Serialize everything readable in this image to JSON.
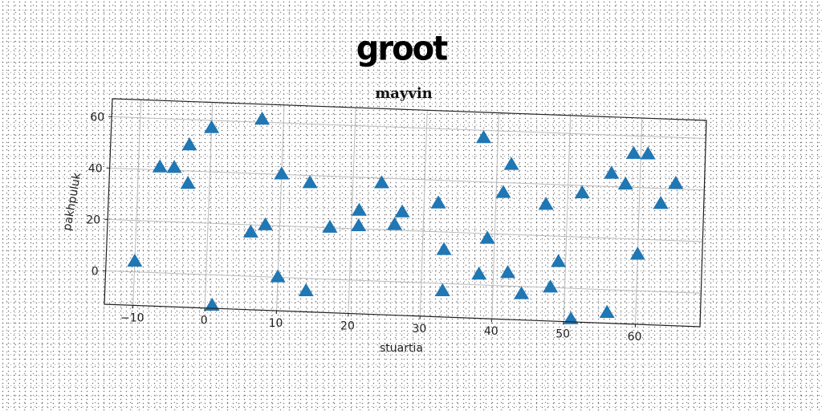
{
  "figure_title": "groot",
  "chart_data": {
    "type": "scatter",
    "title": "mayvin",
    "xlabel": "stuartia",
    "ylabel": "pakhpuluk",
    "xlim": [
      -14,
      69
    ],
    "ylim": [
      -13,
      67
    ],
    "xticks": [
      -10,
      0,
      10,
      20,
      30,
      40,
      50,
      60
    ],
    "yticks": [
      0,
      20,
      40,
      60
    ],
    "grid": true,
    "marker": "triangle-up",
    "color": "#1f77b4",
    "points": [
      {
        "x": -10,
        "y": 4
      },
      {
        "x": -7,
        "y": 41
      },
      {
        "x": -5,
        "y": 41
      },
      {
        "x": -3,
        "y": 50
      },
      {
        "x": -3,
        "y": 35
      },
      {
        "x": 0,
        "y": 57
      },
      {
        "x": 1,
        "y": -12
      },
      {
        "x": 6,
        "y": 17
      },
      {
        "x": 7,
        "y": 61
      },
      {
        "x": 8,
        "y": 20
      },
      {
        "x": 10,
        "y": 40
      },
      {
        "x": 10,
        "y": 0
      },
      {
        "x": 14,
        "y": 37
      },
      {
        "x": 14,
        "y": -5
      },
      {
        "x": 17,
        "y": 20
      },
      {
        "x": 21,
        "y": 27
      },
      {
        "x": 21,
        "y": 21
      },
      {
        "x": 24,
        "y": 38
      },
      {
        "x": 26,
        "y": 22
      },
      {
        "x": 27,
        "y": 27
      },
      {
        "x": 32,
        "y": 31
      },
      {
        "x": 33,
        "y": 13
      },
      {
        "x": 33,
        "y": -3
      },
      {
        "x": 38,
        "y": 4
      },
      {
        "x": 38,
        "y": 57
      },
      {
        "x": 39,
        "y": 18
      },
      {
        "x": 41,
        "y": 36
      },
      {
        "x": 42,
        "y": 5
      },
      {
        "x": 42,
        "y": 47
      },
      {
        "x": 44,
        "y": -3
      },
      {
        "x": 47,
        "y": 32
      },
      {
        "x": 48,
        "y": 0
      },
      {
        "x": 49,
        "y": 10
      },
      {
        "x": 51,
        "y": -12
      },
      {
        "x": 52,
        "y": 37
      },
      {
        "x": 56,
        "y": -9
      },
      {
        "x": 56,
        "y": 45
      },
      {
        "x": 58,
        "y": 41
      },
      {
        "x": 59,
        "y": 53
      },
      {
        "x": 60,
        "y": 14
      },
      {
        "x": 61,
        "y": 53
      },
      {
        "x": 63,
        "y": 34
      },
      {
        "x": 65,
        "y": 42
      }
    ]
  }
}
